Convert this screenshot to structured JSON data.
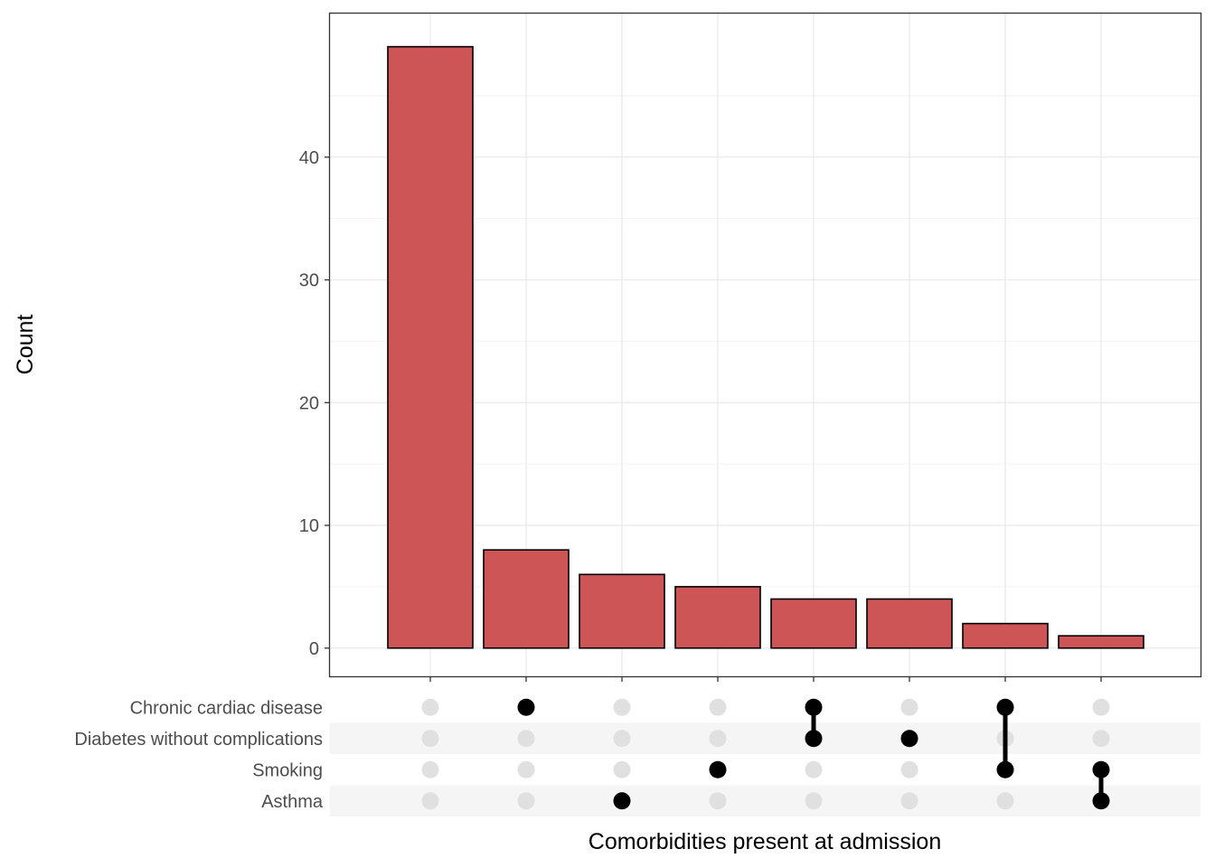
{
  "chart_data": {
    "type": "bar",
    "ylabel": "Count",
    "xlabel": "Comorbidities present at admission",
    "ylim": [
      -2.3,
      51.7
    ],
    "yticks": [
      0,
      10,
      20,
      30,
      40
    ],
    "grid": true,
    "bar_color": "#cd5555",
    "bar_outline": "#000000",
    "sets": [
      "Chronic cardiac disease",
      "Diabetes without complications",
      "Smoking",
      "Asthma"
    ],
    "bars": [
      {
        "value": 49,
        "members": []
      },
      {
        "value": 8,
        "members": [
          "Chronic cardiac disease"
        ]
      },
      {
        "value": 6,
        "members": [
          "Asthma"
        ]
      },
      {
        "value": 5,
        "members": [
          "Smoking"
        ]
      },
      {
        "value": 4,
        "members": [
          "Chronic cardiac disease",
          "Diabetes without complications"
        ]
      },
      {
        "value": 4,
        "members": [
          "Diabetes without complications"
        ]
      },
      {
        "value": 2,
        "members": [
          "Chronic cardiac disease",
          "Smoking"
        ]
      },
      {
        "value": 1,
        "members": [
          "Smoking",
          "Asthma"
        ]
      }
    ]
  }
}
